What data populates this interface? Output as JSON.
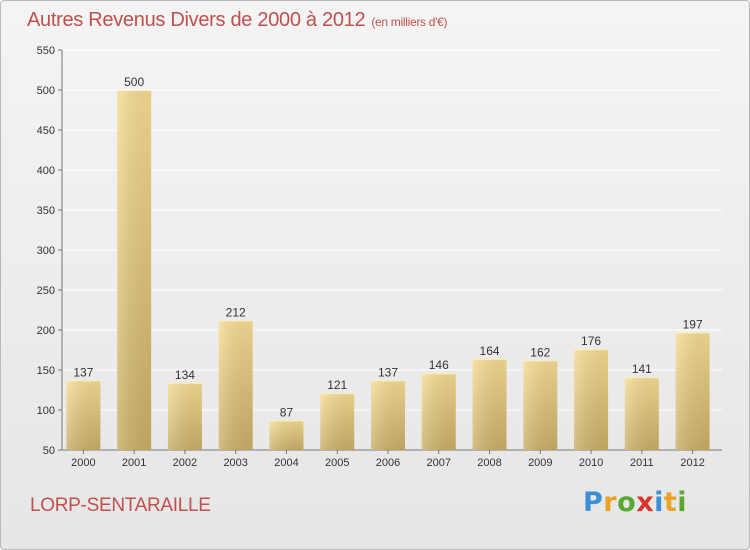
{
  "title": {
    "main": "Autres Revenus Divers de 2000 à 2012",
    "unit": "(en milliers d'€)"
  },
  "place": "LORP-SENTARAILLE",
  "logo": {
    "text": "Proxiti",
    "letters": [
      {
        "char": "P",
        "color": "#3a8fd6"
      },
      {
        "char": "r",
        "color": "#e8a426"
      },
      {
        "char": "o",
        "color": "#5aa832"
      },
      {
        "char": "x",
        "color": "#d9342b"
      },
      {
        "char": "i",
        "color": "#3a8fd6"
      },
      {
        "char": "t",
        "color": "#e8a426"
      },
      {
        "char": "i",
        "color": "#5aa832"
      }
    ]
  },
  "colors": {
    "title": "#c0504d",
    "bar_light": "#f6dc94",
    "bar_dark": "#c9ae67",
    "axis": "#777777",
    "grid": "#ffffff"
  },
  "chart_data": {
    "type": "bar",
    "categories": [
      "2000",
      "2001",
      "2002",
      "2003",
      "2004",
      "2005",
      "2006",
      "2007",
      "2008",
      "2009",
      "2010",
      "2011",
      "2012"
    ],
    "values": [
      137,
      500,
      134,
      212,
      87,
      121,
      137,
      146,
      164,
      162,
      176,
      141,
      197
    ],
    "ylim": [
      50,
      550
    ],
    "yticks": [
      50,
      100,
      150,
      200,
      250,
      300,
      350,
      400,
      450,
      500,
      550
    ],
    "grid": true,
    "data_labels": true
  }
}
